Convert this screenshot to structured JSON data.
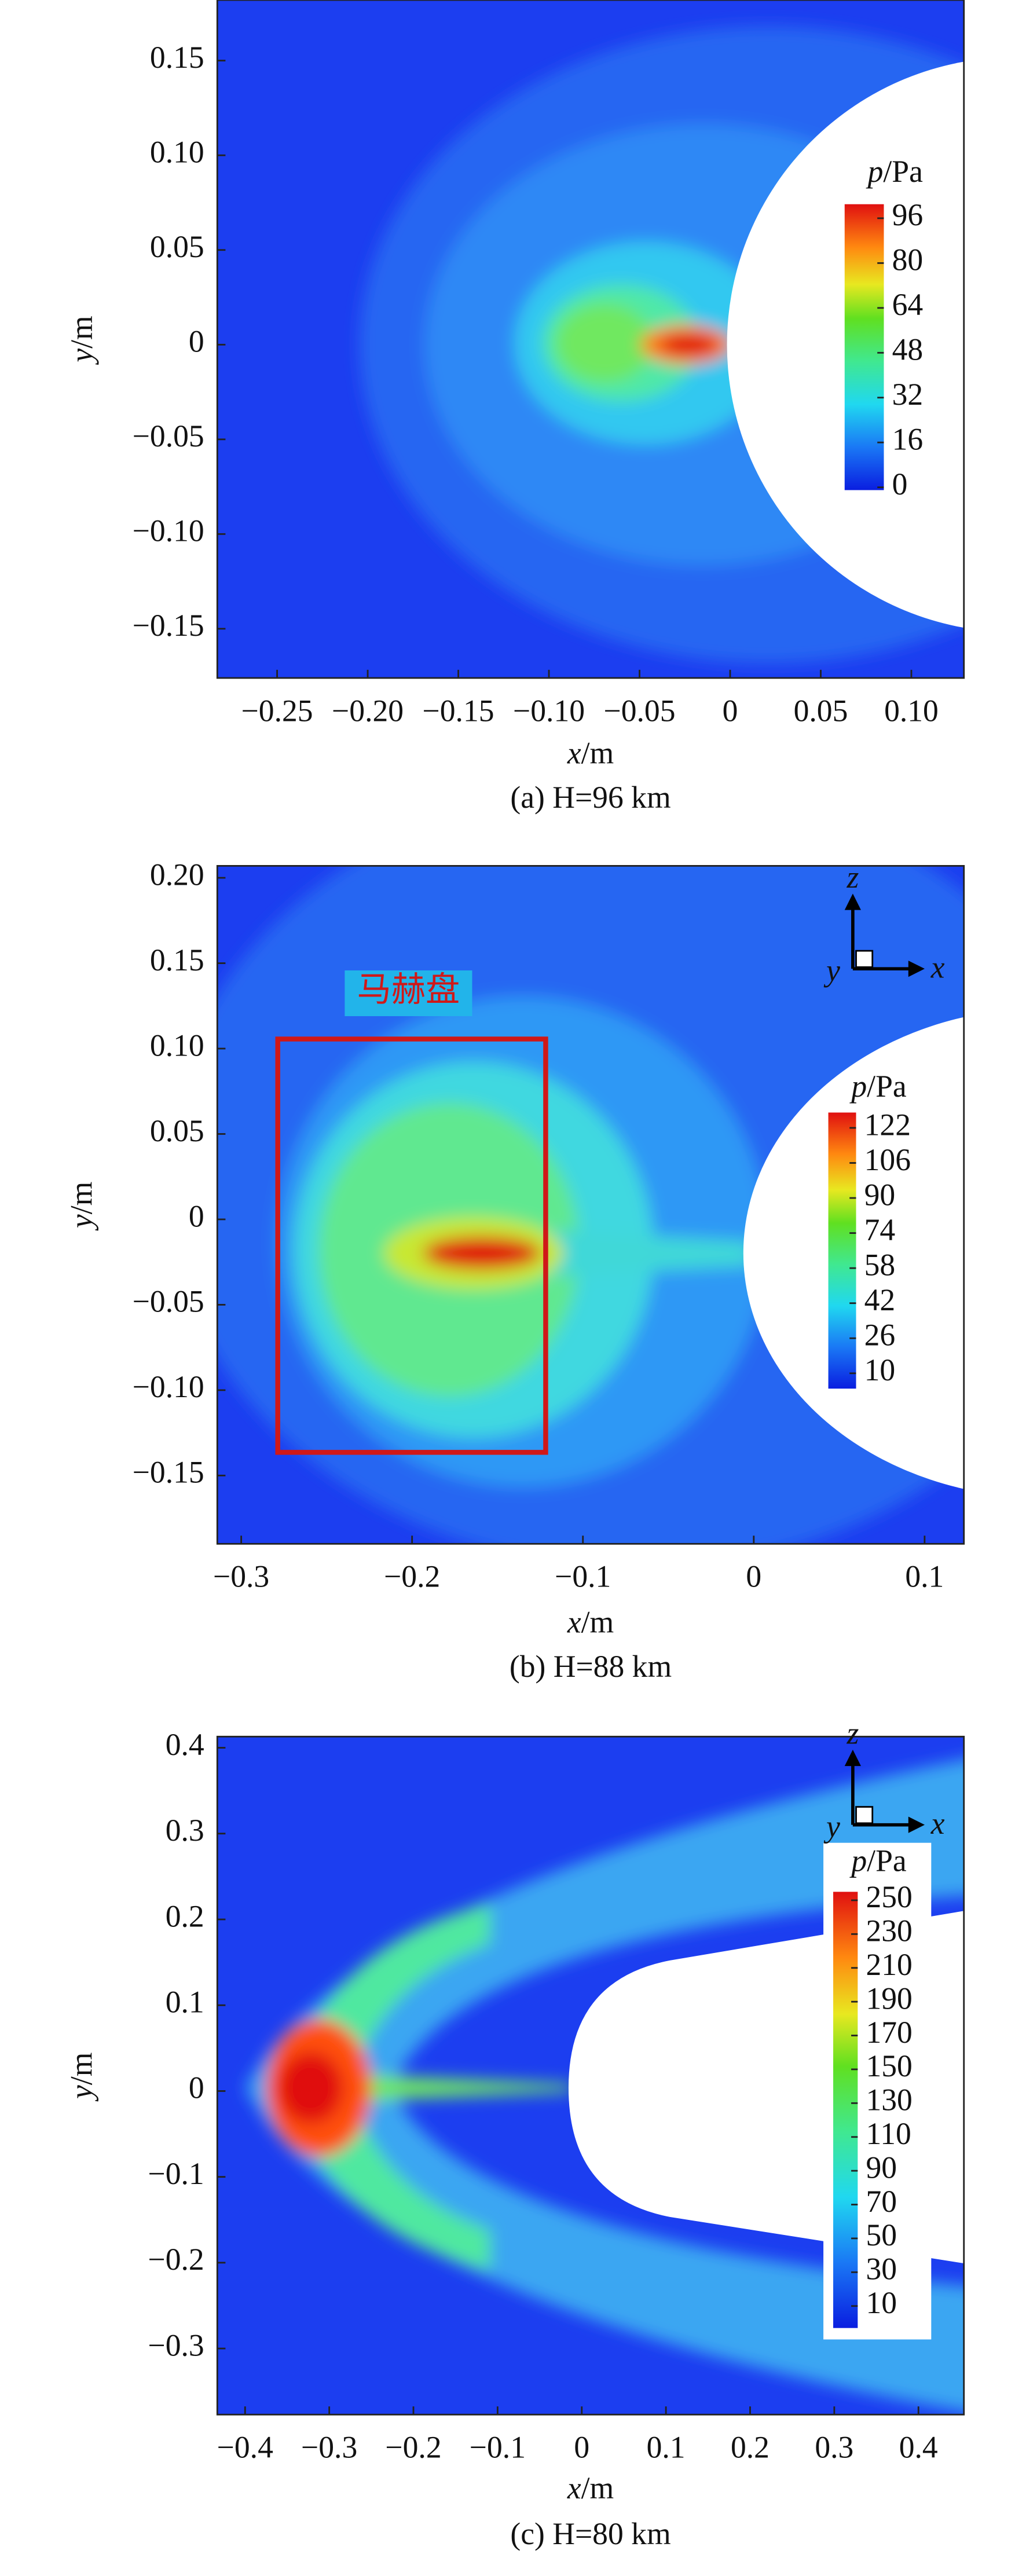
{
  "chart_data": [
    {
      "type": "contour",
      "caption": "(a) H=96 km",
      "x_label": "x/m",
      "y_label": "y/m",
      "xlim": [
        -0.283,
        0.129
      ],
      "ylim": [
        -0.176,
        0.182
      ],
      "xticks": [
        {
          "value": -0.25,
          "label": "−0.25"
        },
        {
          "value": -0.2,
          "label": "−0.20"
        },
        {
          "value": -0.15,
          "label": "−0.15"
        },
        {
          "value": -0.1,
          "label": "−0.10"
        },
        {
          "value": -0.05,
          "label": "−0.05"
        },
        0,
        0.05,
        {
          "value": 0.1,
          "label": "0.10"
        }
      ],
      "yticks": [
        {
          "value": -0.15,
          "label": "−0.15"
        },
        {
          "value": -0.1,
          "label": "−0.10"
        },
        {
          "value": -0.05,
          "label": "−0.05"
        },
        0,
        0.05,
        {
          "value": 0.1,
          "label": "0.10"
        },
        0.15
      ],
      "colorbar": {
        "title": "p/Pa",
        "clim": [
          -1,
          101
        ],
        "levels": [
          96,
          80,
          64,
          48,
          32,
          16,
          0
        ]
      }
    },
    {
      "type": "contour",
      "caption": "(b) H=88 km",
      "x_label": "x/m",
      "y_label": "y/m",
      "annotation": "马赫盘",
      "axis_icon": [
        "z",
        "y",
        "x"
      ],
      "xlim": [
        -0.314,
        0.123
      ],
      "ylim": [
        -0.19,
        0.207
      ],
      "xticks": [
        {
          "value": -0.3,
          "label": "−0.3"
        },
        {
          "value": -0.2,
          "label": "−0.2"
        },
        {
          "value": -0.1,
          "label": "−0.1"
        },
        0,
        0.1
      ],
      "yticks": [
        {
          "value": -0.15,
          "label": "−0.15"
        },
        {
          "value": -0.1,
          "label": "−0.10"
        },
        {
          "value": -0.05,
          "label": "−0.05"
        },
        0,
        0.05,
        {
          "value": 0.1,
          "label": "0.10"
        },
        0.15,
        {
          "value": 0.2,
          "label": "0.20"
        }
      ],
      "colorbar": {
        "title": "p/Pa",
        "clim": [
          3,
          129
        ],
        "levels": [
          122,
          106,
          90,
          74,
          58,
          42,
          26,
          10
        ]
      }
    },
    {
      "type": "contour",
      "caption": "(c) H=80 km",
      "x_label": "x/m",
      "y_label": "y/m",
      "axis_icon": [
        "z",
        "y",
        "x"
      ],
      "xlim": [
        -0.433,
        0.454
      ],
      "ylim": [
        -0.377,
        0.413
      ],
      "xticks": [
        {
          "value": -0.4,
          "label": "−0.4"
        },
        {
          "value": -0.3,
          "label": "−0.3"
        },
        {
          "value": -0.2,
          "label": "−0.2"
        },
        {
          "value": -0.1,
          "label": "−0.1"
        },
        0,
        0.1,
        0.2,
        0.3,
        0.4
      ],
      "yticks": [
        {
          "value": -0.3,
          "label": "−0.3"
        },
        {
          "value": -0.2,
          "label": "−0.2"
        },
        {
          "value": -0.1,
          "label": "−0.1"
        },
        0,
        0.1,
        0.2,
        0.3,
        0.4
      ],
      "colorbar": {
        "title": "p/Pa",
        "clim": [
          -3,
          255
        ],
        "levels": [
          250,
          230,
          210,
          190,
          170,
          150,
          130,
          110,
          90,
          70,
          50,
          30,
          10
        ]
      }
    }
  ]
}
